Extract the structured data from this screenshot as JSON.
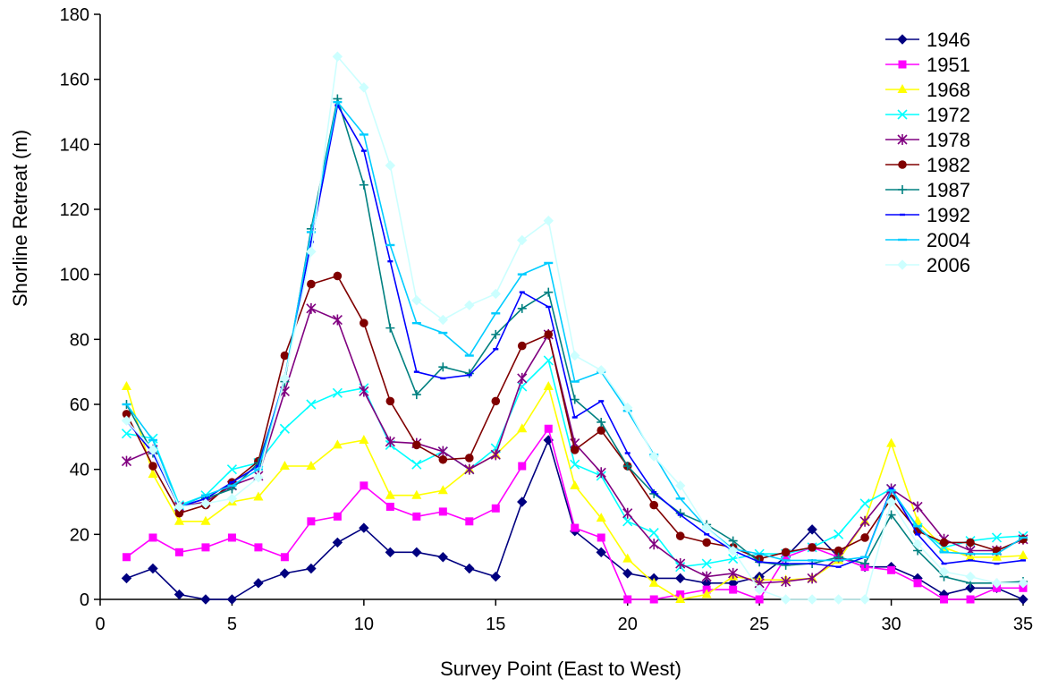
{
  "chart_data": {
    "type": "line",
    "title": "",
    "xlabel": "Survey Point (East to West)",
    "ylabel": "Shorline Retreat (m)",
    "xlim": [
      0,
      35
    ],
    "ylim": [
      0,
      180
    ],
    "xticks": [
      0,
      5,
      10,
      15,
      20,
      25,
      30,
      35
    ],
    "yticks": [
      0,
      20,
      40,
      60,
      80,
      100,
      120,
      140,
      160,
      180
    ],
    "grid": false,
    "legend_position": "top-right",
    "x": [
      1,
      2,
      3,
      4,
      5,
      6,
      7,
      8,
      9,
      10,
      11,
      12,
      13,
      14,
      15,
      16,
      17,
      18,
      19,
      20,
      21,
      22,
      23,
      24,
      25,
      26,
      27,
      28,
      29,
      30,
      31,
      32,
      33,
      34,
      35
    ],
    "series": [
      {
        "name": "1946",
        "color": "#000080",
        "marker": "diamond",
        "values": [
          6.5,
          9.5,
          1.5,
          0,
          0,
          5,
          8,
          9.5,
          17.5,
          22,
          14.5,
          14.5,
          13,
          9.5,
          7,
          30,
          49,
          21,
          14.5,
          8,
          6.5,
          6.5,
          5,
          5,
          7,
          13,
          21.5,
          13,
          10,
          10,
          6.5,
          1.5,
          3.5,
          3.5,
          0
        ]
      },
      {
        "name": "1951",
        "color": "#ff00ff",
        "marker": "square",
        "values": [
          13,
          19,
          14.5,
          16,
          19,
          16,
          13,
          24,
          25.5,
          35,
          28.5,
          25.5,
          27,
          24,
          28,
          41,
          52.5,
          22,
          19,
          0,
          0,
          1.5,
          3,
          3,
          0,
          13,
          16,
          13,
          10,
          9,
          5,
          0,
          0,
          3.5,
          3.5
        ]
      },
      {
        "name": "1968",
        "color": "#ffff00",
        "marker": "triangle",
        "values": [
          65.5,
          38.5,
          24,
          24,
          30,
          31.5,
          41,
          41,
          47.5,
          49,
          32,
          32,
          33.5,
          40,
          44.5,
          52.5,
          65.5,
          35,
          25,
          12.5,
          5,
          0,
          1.5,
          7,
          6,
          6,
          6.5,
          12,
          24,
          48,
          24,
          16,
          13,
          13,
          13.5
        ]
      },
      {
        "name": "1972",
        "color": "#00ffff",
        "marker": "x",
        "values": [
          51,
          49.5,
          29,
          32,
          40,
          42,
          52.5,
          60,
          63.5,
          65,
          47.5,
          41.5,
          45.5,
          40,
          46.5,
          65.5,
          73.5,
          41.5,
          38,
          24,
          20.5,
          10,
          11,
          12.5,
          14,
          14,
          16,
          20,
          29.5,
          34,
          22,
          16,
          18,
          19,
          19.5
        ]
      },
      {
        "name": "1978",
        "color": "#800080",
        "marker": "star",
        "values": [
          42.5,
          46,
          28.5,
          30,
          35,
          38,
          64,
          89.5,
          86,
          64,
          48.5,
          48,
          45.5,
          40,
          44.5,
          68,
          81.5,
          48,
          39,
          26.5,
          17,
          11,
          7,
          8,
          5,
          5.5,
          6.5,
          13,
          24,
          34,
          28.5,
          18.5,
          15,
          15,
          18.5
        ]
      },
      {
        "name": "1982",
        "color": "#800000",
        "marker": "circle",
        "values": [
          57,
          41,
          26.5,
          29,
          36,
          42.5,
          75,
          97,
          99.5,
          85,
          61,
          47.5,
          43,
          43.5,
          61,
          78,
          81.5,
          46,
          52,
          41,
          29,
          19.5,
          17.5,
          16,
          12.5,
          14.5,
          16,
          15,
          19,
          31,
          21,
          17.5,
          17.5,
          15,
          18.5
        ]
      },
      {
        "name": "1987",
        "color": "#008080",
        "marker": "plus",
        "values": [
          60,
          45,
          28.5,
          31,
          34,
          42,
          67,
          114,
          154,
          127.5,
          83.5,
          63,
          71.5,
          69.5,
          81.5,
          89.5,
          94.5,
          61.5,
          54.5,
          41,
          32.5,
          26.5,
          23,
          18,
          11.5,
          10.5,
          11,
          13,
          11,
          26,
          15,
          7,
          5,
          5,
          5.5
        ]
      },
      {
        "name": "1992",
        "color": "#0000ff",
        "marker": "dash",
        "values": [
          55,
          45,
          28.5,
          31,
          36,
          41,
          68,
          110,
          152,
          138,
          104,
          70,
          68,
          69,
          77,
          94.5,
          90,
          56,
          61,
          45,
          33,
          26,
          20,
          15,
          11.5,
          11,
          11,
          10,
          13,
          34,
          20,
          11,
          12,
          11,
          12
        ]
      },
      {
        "name": "2004",
        "color": "#00ccff",
        "marker": "hline",
        "values": [
          60,
          49,
          28.5,
          32,
          35,
          40,
          68,
          113,
          153,
          143,
          109,
          85,
          82,
          75,
          88,
          100,
          103.5,
          67,
          70,
          58,
          44.5,
          31,
          22,
          15.5,
          14,
          12,
          12,
          12,
          13,
          33.5,
          22.5,
          14.5,
          14,
          14,
          19
        ]
      },
      {
        "name": "2006",
        "color": "#ccffff",
        "marker": "diamond",
        "values": [
          55,
          46,
          28.5,
          29.5,
          31,
          37.5,
          68,
          107,
          167,
          157.5,
          133.5,
          92,
          86,
          90.5,
          94,
          110.5,
          116.5,
          75,
          70.5,
          59,
          44,
          35,
          22,
          15,
          3,
          0,
          0,
          0,
          0,
          30,
          17,
          8.5,
          7,
          5,
          5
        ]
      }
    ]
  }
}
